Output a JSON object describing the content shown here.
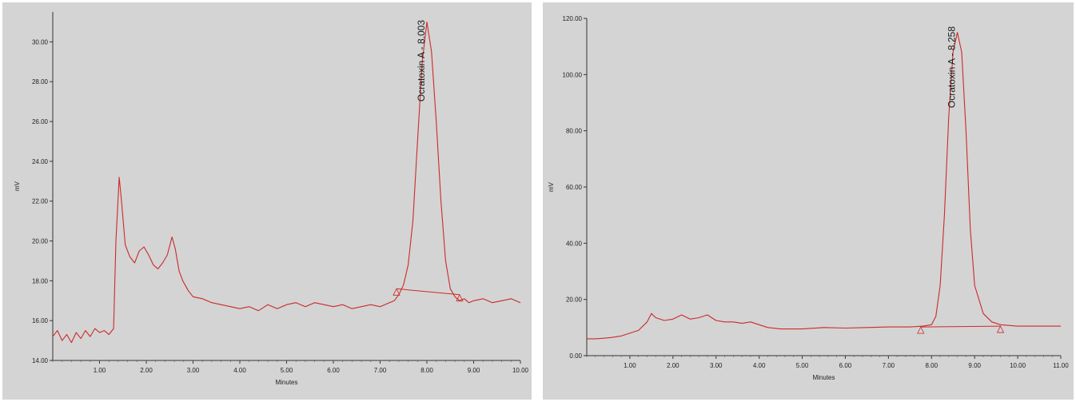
{
  "chart_data": [
    {
      "type": "line",
      "xlabel": "Minutes",
      "ylabel": "mV",
      "xlim": [
        0,
        10
      ],
      "ylim": [
        14,
        31.5
      ],
      "x_ticks": [
        1,
        2,
        3,
        4,
        5,
        6,
        7,
        8,
        9,
        10
      ],
      "x_tick_labels": [
        "1.00",
        "2.00",
        "3.00",
        "4.00",
        "5.00",
        "6.00",
        "7.00",
        "8.00",
        "9.00",
        "10.00"
      ],
      "y_ticks": [
        14,
        16,
        18,
        20,
        22,
        24,
        26,
        28,
        30
      ],
      "y_tick_labels": [
        "14.00",
        "16.00",
        "18.00",
        "20.00",
        "22.00",
        "24.00",
        "26.00",
        "28.00",
        "30.00"
      ],
      "grid": false,
      "line_color": "#cc2a2a",
      "series": [
        {
          "x": [
            0.0,
            0.1,
            0.2,
            0.3,
            0.4,
            0.5,
            0.6,
            0.7,
            0.8,
            0.9,
            1.0,
            1.1,
            1.2,
            1.3,
            1.35,
            1.42,
            1.47,
            1.55,
            1.65,
            1.75,
            1.85,
            1.95,
            2.05,
            2.15,
            2.25,
            2.35,
            2.45,
            2.55,
            2.62,
            2.7,
            2.78,
            2.9,
            3.0,
            3.2,
            3.4,
            3.6,
            3.8,
            4.0,
            4.2,
            4.4,
            4.6,
            4.8,
            5.0,
            5.2,
            5.4,
            5.6,
            5.8,
            6.0,
            6.2,
            6.4,
            6.6,
            6.8,
            7.0,
            7.2,
            7.3,
            7.4,
            7.5,
            7.6,
            7.7,
            7.8,
            7.9,
            8.0,
            8.1,
            8.2,
            8.3,
            8.4,
            8.5,
            8.6,
            8.7,
            8.8,
            8.9,
            9.0,
            9.2,
            9.4,
            9.6,
            9.8,
            10.0
          ],
          "y": [
            15.2,
            15.5,
            15.0,
            15.3,
            14.9,
            15.4,
            15.1,
            15.5,
            15.2,
            15.6,
            15.4,
            15.5,
            15.3,
            15.6,
            20.0,
            23.2,
            22.0,
            19.8,
            19.2,
            18.9,
            19.5,
            19.7,
            19.3,
            18.8,
            18.6,
            18.9,
            19.3,
            20.2,
            19.6,
            18.5,
            18.0,
            17.5,
            17.2,
            17.1,
            16.9,
            16.8,
            16.7,
            16.6,
            16.7,
            16.5,
            16.8,
            16.6,
            16.8,
            16.9,
            16.7,
            16.9,
            16.8,
            16.7,
            16.8,
            16.6,
            16.7,
            16.8,
            16.7,
            16.9,
            17.0,
            17.3,
            17.8,
            18.8,
            21.0,
            25.0,
            29.0,
            31.0,
            29.5,
            26.0,
            22.0,
            19.0,
            17.6,
            17.2,
            17.0,
            17.1,
            16.9,
            17.0,
            17.1,
            16.9,
            17.0,
            17.1,
            16.9
          ]
        }
      ],
      "baseline": {
        "x": [
          7.35,
          8.7
        ],
        "y": [
          17.6,
          17.3
        ]
      },
      "annotations": [
        {
          "text": "Ocratoxin  A - 8.003",
          "x": 8.0
        }
      ]
    },
    {
      "type": "line",
      "xlabel": "Minutes",
      "ylabel": "mV",
      "xlim": [
        0,
        11
      ],
      "ylim": [
        0,
        120
      ],
      "x_ticks": [
        1,
        2,
        3,
        4,
        5,
        6,
        7,
        8,
        9,
        10,
        11
      ],
      "x_tick_labels": [
        "1.00",
        "2.00",
        "3.00",
        "4.00",
        "5.00",
        "6.00",
        "7.00",
        "8.00",
        "9.00",
        "10.00",
        "11.00"
      ],
      "y_ticks": [
        0,
        20,
        40,
        60,
        80,
        100,
        120
      ],
      "y_tick_labels": [
        "0.00",
        "20.00",
        "40.00",
        "60.00",
        "80.00",
        "100.00",
        "120.00"
      ],
      "grid": false,
      "line_color": "#cc2a2a",
      "series": [
        {
          "x": [
            0.0,
            0.2,
            0.4,
            0.6,
            0.8,
            1.0,
            1.2,
            1.4,
            1.5,
            1.6,
            1.8,
            2.0,
            2.2,
            2.4,
            2.6,
            2.8,
            3.0,
            3.2,
            3.4,
            3.6,
            3.8,
            4.0,
            4.2,
            4.5,
            5.0,
            5.5,
            6.0,
            6.5,
            7.0,
            7.5,
            7.8,
            8.0,
            8.1,
            8.2,
            8.3,
            8.4,
            8.5,
            8.6,
            8.7,
            8.8,
            8.9,
            9.0,
            9.2,
            9.4,
            9.6,
            10.0,
            10.5,
            11.0
          ],
          "y": [
            6.0,
            6.0,
            6.2,
            6.5,
            7.0,
            8.0,
            9.0,
            12.0,
            15.0,
            13.5,
            12.5,
            13.0,
            14.5,
            13.0,
            13.5,
            14.5,
            12.5,
            12.0,
            12.0,
            11.5,
            12.0,
            11.0,
            10.0,
            9.5,
            9.5,
            10.0,
            9.8,
            10.0,
            10.2,
            10.2,
            10.5,
            11.0,
            14.0,
            25.0,
            50.0,
            85.0,
            108.0,
            115.0,
            108.0,
            80.0,
            45.0,
            25.0,
            15.0,
            12.0,
            11.0,
            10.5,
            10.5,
            10.5
          ]
        }
      ],
      "baseline": {
        "x": [
          7.75,
          9.6
        ],
        "y": [
          10.2,
          10.5
        ]
      },
      "annotations": [
        {
          "text": "Ocratoxin  A - 8.258",
          "x": 8.6
        }
      ]
    }
  ]
}
